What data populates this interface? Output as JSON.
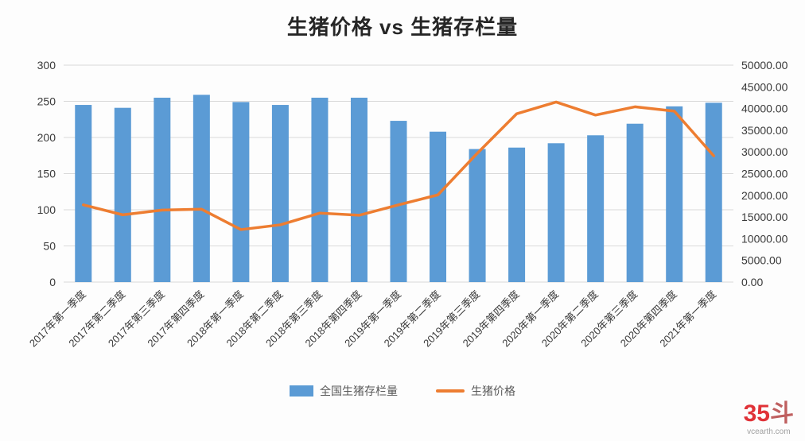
{
  "title": "生猪价格 vs 生猪存栏量",
  "watermark": {
    "logo_number": "35",
    "logo_char": "斗",
    "site": "vcearth.com"
  },
  "chart_data": {
    "type": "bar",
    "subtype": "combo-bar-line-dual-axis",
    "title": "生猪价格 vs 生猪存栏量",
    "categories": [
      "2017年第一季度",
      "2017年第二季度",
      "2017年第三季度",
      "2017年第四季度",
      "2018年第一季度",
      "2018年第二季度",
      "2018年第三季度",
      "2018年第四季度",
      "2019年第一季度",
      "2019年第二季度",
      "2019年第三季度",
      "2019年第四季度",
      "2020年第一季度",
      "2020年第二季度",
      "2020年第三季度",
      "2020年第四季度",
      "2021年第一季度"
    ],
    "series": [
      {
        "name": "全国生猪存栏量",
        "type": "bar",
        "axis": "left",
        "color": "#5b9bd5",
        "values": [
          245,
          241,
          255,
          259,
          249,
          245,
          255,
          255,
          223,
          208,
          184,
          186,
          192,
          203,
          219,
          243,
          248
        ]
      },
      {
        "name": "生猪价格",
        "type": "line",
        "axis": "right",
        "color": "#ed7d31",
        "values": [
          17800,
          15500,
          16600,
          16800,
          12100,
          13200,
          15900,
          15400,
          17800,
          20100,
          29700,
          38800,
          41500,
          38500,
          40400,
          39400,
          29100
        ]
      }
    ],
    "left_axis": {
      "min": 0,
      "max": 300,
      "step": 50,
      "tick_labels": [
        "0",
        "50",
        "100",
        "150",
        "200",
        "250",
        "300"
      ]
    },
    "right_axis": {
      "min": 0,
      "max": 50000,
      "step": 5000,
      "tick_labels": [
        "0.00",
        "5000.00",
        "10000.00",
        "15000.00",
        "20000.00",
        "25000.00",
        "30000.00",
        "35000.00",
        "40000.00",
        "45000.00",
        "50000.00"
      ]
    },
    "grid": true,
    "legend_position": "bottom"
  }
}
